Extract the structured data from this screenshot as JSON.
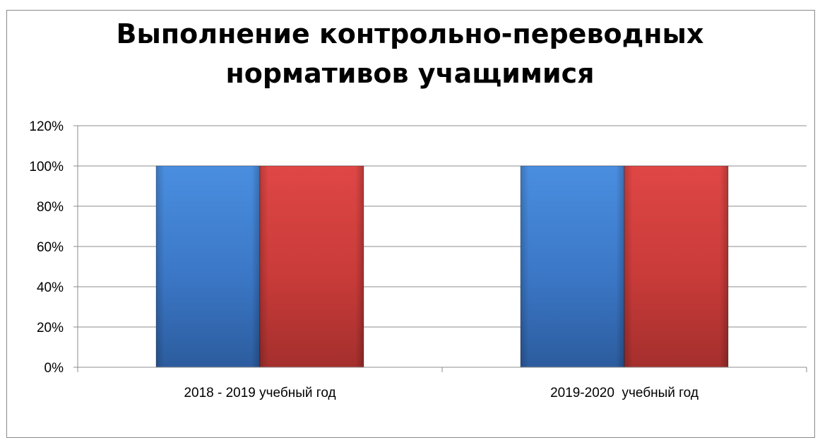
{
  "chart_data": {
    "type": "bar",
    "title_line1": "Выполнение контрольно-переводных",
    "title_line2": "нормативов учащимися",
    "categories": [
      "2018 - 2019 учебный год",
      "2019-2020  учебный год"
    ],
    "series": [
      {
        "values": [
          1.0,
          1.0
        ],
        "color": "#3d7ed0"
      },
      {
        "values": [
          1.0,
          1.0
        ],
        "color": "#cf3c3a"
      }
    ],
    "ylim": [
      0,
      1.2
    ],
    "yticks": [
      "0%",
      "20%",
      "40%",
      "60%",
      "80%",
      "100%",
      "120%"
    ],
    "grid": true,
    "legend": false
  }
}
